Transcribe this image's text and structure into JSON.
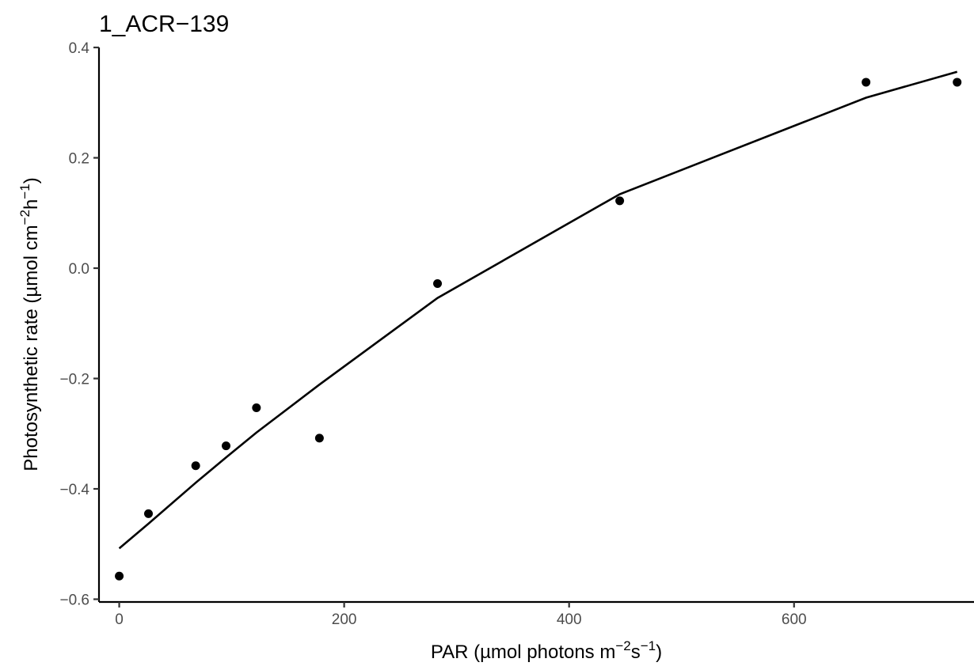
{
  "chart_data": {
    "type": "scatter",
    "title": "1_ACR−139",
    "xlabel": {
      "main": "PAR (µmol photons m",
      "sup1": "−2",
      "mid": "s",
      "sup2": "−1",
      "end": ")"
    },
    "ylabel": {
      "main": "Photosynthetic rate (µmol cm",
      "sup1": "−2",
      "mid": "h",
      "sup2": "−1",
      "end": ")"
    },
    "xlim": [
      -18,
      760
    ],
    "ylim": [
      -0.605,
      0.4
    ],
    "x_ticks": [
      {
        "value": 0,
        "label": "0"
      },
      {
        "value": 200,
        "label": "200"
      },
      {
        "value": 400,
        "label": "400"
      },
      {
        "value": 600,
        "label": "600"
      }
    ],
    "y_ticks": [
      {
        "value": 0.4,
        "label": "0.4"
      },
      {
        "value": 0.2,
        "label": "0.2"
      },
      {
        "value": 0.0,
        "label": "0.0"
      },
      {
        "value": -0.2,
        "label": "−0.2"
      },
      {
        "value": -0.4,
        "label": "−0.4"
      },
      {
        "value": -0.6,
        "label": "−0.6"
      }
    ],
    "grid": false,
    "points": [
      {
        "x": 0,
        "y": -0.558
      },
      {
        "x": 26,
        "y": -0.445
      },
      {
        "x": 68,
        "y": -0.358
      },
      {
        "x": 95,
        "y": -0.322
      },
      {
        "x": 122,
        "y": -0.253
      },
      {
        "x": 178,
        "y": -0.308
      },
      {
        "x": 283,
        "y": -0.028
      },
      {
        "x": 445,
        "y": 0.122
      },
      {
        "x": 664,
        "y": 0.337
      },
      {
        "x": 745,
        "y": 0.337
      }
    ],
    "fit_line": [
      {
        "x": 0,
        "y": -0.508
      },
      {
        "x": 26,
        "y": -0.463
      },
      {
        "x": 68,
        "y": -0.389
      },
      {
        "x": 95,
        "y": -0.343
      },
      {
        "x": 122,
        "y": -0.298
      },
      {
        "x": 178,
        "y": -0.211
      },
      {
        "x": 283,
        "y": -0.054
      },
      {
        "x": 445,
        "y": 0.134
      },
      {
        "x": 664,
        "y": 0.309
      },
      {
        "x": 745,
        "y": 0.356
      }
    ]
  }
}
